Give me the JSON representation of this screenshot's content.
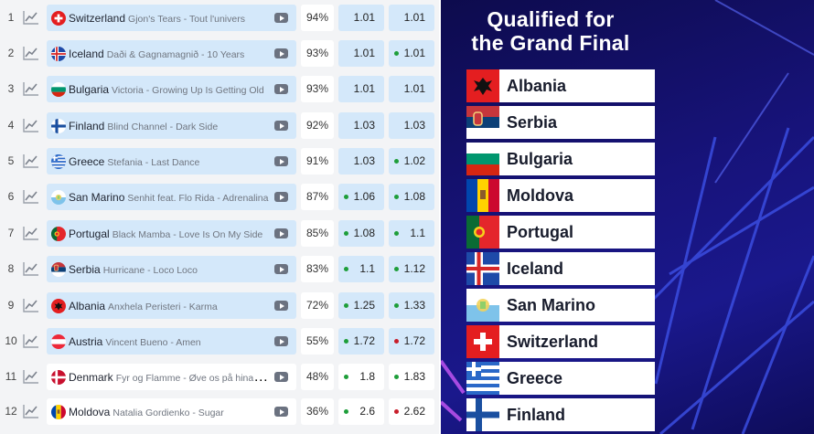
{
  "odds_table": {
    "rows": [
      {
        "rank": "1",
        "country": "Switzerland",
        "song": "Gjon's Tears - Tout l'univers",
        "flag": "switzerland-flag",
        "percent": "94%",
        "odd1": "1.01",
        "odd2": "1.01",
        "dot1": "",
        "dot2": "",
        "highlight": true
      },
      {
        "rank": "2",
        "country": "Iceland",
        "song": "Daði & Gagnamagnið - 10 Years",
        "flag": "iceland-flag",
        "percent": "93%",
        "odd1": "1.01",
        "odd2": "1.01",
        "dot1": "",
        "dot2": "green",
        "highlight": true
      },
      {
        "rank": "3",
        "country": "Bulgaria",
        "song": "Victoria - Growing Up Is Getting Old",
        "flag": "bulgaria-flag",
        "percent": "93%",
        "odd1": "1.01",
        "odd2": "1.01",
        "dot1": "",
        "dot2": "",
        "highlight": true
      },
      {
        "rank": "4",
        "country": "Finland",
        "song": "Blind Channel - Dark Side",
        "flag": "finland-flag",
        "percent": "92%",
        "odd1": "1.03",
        "odd2": "1.03",
        "dot1": "",
        "dot2": "",
        "highlight": true
      },
      {
        "rank": "5",
        "country": "Greece",
        "song": "Stefania - Last Dance",
        "flag": "greece-flag",
        "percent": "91%",
        "odd1": "1.03",
        "odd2": "1.02",
        "dot1": "",
        "dot2": "green",
        "highlight": true
      },
      {
        "rank": "6",
        "country": "San Marino",
        "song": "Senhit feat. Flo Rida - Adrenalina",
        "flag": "san-marino-flag",
        "percent": "87%",
        "odd1": "1.06",
        "odd2": "1.08",
        "dot1": "green",
        "dot2": "green",
        "highlight": true
      },
      {
        "rank": "7",
        "country": "Portugal",
        "song": "Black Mamba - Love Is On My Side",
        "flag": "portugal-flag",
        "percent": "85%",
        "odd1": "1.08",
        "odd2": "1.1",
        "dot1": "green",
        "dot2": "green",
        "highlight": true
      },
      {
        "rank": "8",
        "country": "Serbia",
        "song": "Hurricane - Loco Loco",
        "flag": "serbia-flag",
        "percent": "83%",
        "odd1": "1.1",
        "odd2": "1.12",
        "dot1": "green",
        "dot2": "green",
        "highlight": true
      },
      {
        "rank": "9",
        "country": "Albania",
        "song": "Anxhela Peristeri - Karma",
        "flag": "albania-flag",
        "percent": "72%",
        "odd1": "1.25",
        "odd2": "1.33",
        "dot1": "green",
        "dot2": "green",
        "highlight": true
      },
      {
        "rank": "10",
        "country": "Austria",
        "song": "Vincent Bueno - Amen",
        "flag": "austria-flag",
        "percent": "55%",
        "odd1": "1.72",
        "odd2": "1.72",
        "dot1": "green",
        "dot2": "red",
        "highlight": true
      },
      {
        "rank": "11",
        "country": "Denmark",
        "song": "Fyr og Flamme - Øve os på hinanden",
        "flag": "denmark-flag",
        "percent": "48%",
        "odd1": "1.8",
        "odd2": "1.83",
        "dot1": "green",
        "dot2": "green",
        "highlight": false
      },
      {
        "rank": "12",
        "country": "Moldova",
        "song": "Natalia Gordienko - Sugar",
        "flag": "moldova-flag",
        "percent": "36%",
        "odd1": "2.6",
        "odd2": "2.62",
        "dot1": "green",
        "dot2": "red",
        "highlight": false
      }
    ]
  },
  "qualified": {
    "title_line1": "Qualified for",
    "title_line2": "the Grand Final",
    "countries": [
      {
        "name": "Albania",
        "flag": "albania-flag"
      },
      {
        "name": "Serbia",
        "flag": "serbia-flag"
      },
      {
        "name": "Bulgaria",
        "flag": "bulgaria-flag"
      },
      {
        "name": "Moldova",
        "flag": "moldova-flag"
      },
      {
        "name": "Portugal",
        "flag": "portugal-flag"
      },
      {
        "name": "Iceland",
        "flag": "iceland-flag"
      },
      {
        "name": "San Marino",
        "flag": "san-marino-flag"
      },
      {
        "name": "Switzerland",
        "flag": "switzerland-flag"
      },
      {
        "name": "Greece",
        "flag": "greece-flag"
      },
      {
        "name": "Finland",
        "flag": "finland-flag"
      }
    ]
  },
  "colors": {
    "row_highlight": "#d4e8fa",
    "dot_green": "#1e9e3a",
    "dot_red": "#c81e2b",
    "panel_background": "#17137a",
    "panel_lines": "#3a4de0"
  }
}
